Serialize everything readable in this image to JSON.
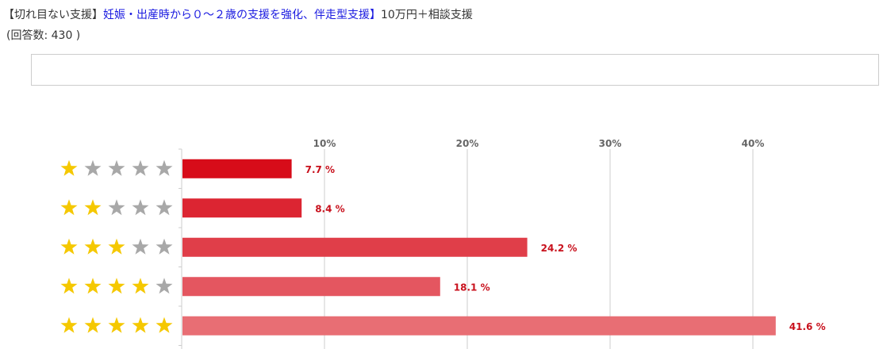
{
  "header": {
    "title_prefix": "【切れ目ない支援】",
    "title_link": "妊娠・出産時から０～２歳の支援を強化、伴走型支援】",
    "title_suffix": "10万円＋相談支援",
    "response_count": "(回答数: 430 )"
  },
  "chart_data": {
    "type": "bar",
    "orientation": "horizontal",
    "categories": [
      "1 star",
      "2 stars",
      "3 stars",
      "4 stars",
      "5 stars"
    ],
    "stars": [
      1,
      2,
      3,
      4,
      5
    ],
    "values": [
      7.7,
      8.4,
      24.2,
      18.1,
      41.6
    ],
    "value_labels": [
      "7.7 %",
      "8.4 %",
      "24.2 %",
      "18.1 %",
      "41.6 %"
    ],
    "xticks": [
      10,
      20,
      30,
      40
    ],
    "xtick_labels": [
      "10%",
      "20%",
      "30%",
      "40%"
    ],
    "xlim": [
      0,
      49
    ],
    "grid": true,
    "colors": [
      "#d70c19",
      "#dc2532",
      "#e03e49",
      "#e45660",
      "#e86e74"
    ],
    "star_on_color": "#f5c800",
    "star_off_color": "#a8a8a8",
    "label_color": "#c8101c"
  }
}
